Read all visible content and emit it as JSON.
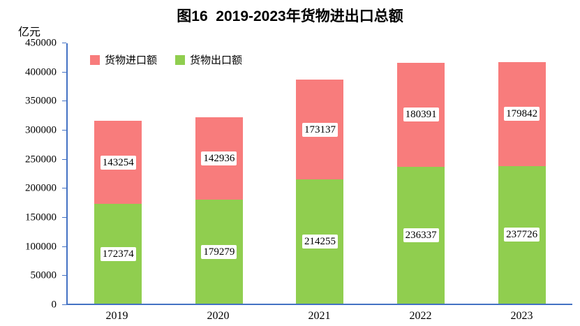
{
  "title": "图16  2019-2023年货物进出口总额",
  "unit_label": "亿元",
  "legend": [
    {
      "label": "货物进口额",
      "color": "#F87C7C"
    },
    {
      "label": "货物出口额",
      "color": "#90CE4F"
    }
  ],
  "chart_data": {
    "type": "bar",
    "stacked": true,
    "title": "图16  2019-2023年货物进出口总额",
    "ylabel": "亿元",
    "categories": [
      "2019",
      "2020",
      "2021",
      "2022",
      "2023"
    ],
    "series": [
      {
        "name": "货物出口额",
        "color": "#90CE4F",
        "values": [
          172374,
          179279,
          214255,
          236337,
          237726
        ]
      },
      {
        "name": "货物进口额",
        "color": "#F87C7C",
        "values": [
          143254,
          142936,
          173137,
          180391,
          179842
        ]
      }
    ],
    "ylim": [
      0,
      450000
    ],
    "ytick_step": 50000,
    "grid": false,
    "legend_position": "top-left-inside",
    "axis_color": "#4472C4"
  }
}
